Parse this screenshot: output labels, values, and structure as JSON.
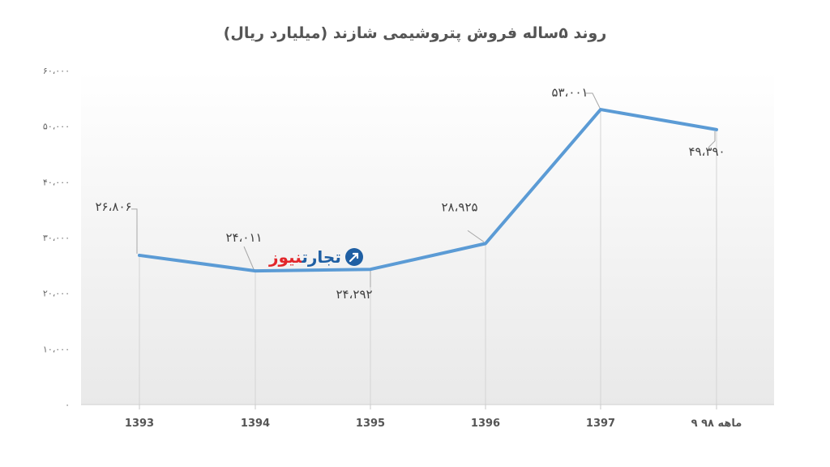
{
  "chart_data": {
    "type": "line",
    "title": "روند ۵ساله فروش پتروشیمی شازند (میلیارد ریال)",
    "categories": [
      "1393",
      "1394",
      "1395",
      "1396",
      "1397",
      "۹ ماهه ۹۸"
    ],
    "series": [
      {
        "values": [
          26806,
          24011,
          24292,
          28925,
          53001,
          49390
        ],
        "labels": [
          "۲۶،۸۰۶",
          "۲۴،۰۱۱",
          "۲۴،۲۹۲",
          "۲۸،۹۲۵",
          "۵۳،۰۰۱",
          "۴۹،۳۹۰"
        ],
        "color": "#5b9bd5"
      }
    ],
    "ylim": [
      0,
      60000
    ],
    "yticks": [
      0,
      10000,
      20000,
      30000,
      40000,
      50000,
      60000
    ],
    "ytick_labels": [
      "۰",
      "۱۰،۰۰۰",
      "۲۰،۰۰۰",
      "۳۰،۰۰۰",
      "۴۰،۰۰۰",
      "۵۰،۰۰۰",
      "۶۰،۰۰۰"
    ],
    "grid": false,
    "drop_lines": true
  },
  "watermark": {
    "part1": "تجارت",
    "part2": "نیوز",
    "colors": {
      "primary": "#1f5fa3",
      "accent": "#e2262b"
    }
  }
}
